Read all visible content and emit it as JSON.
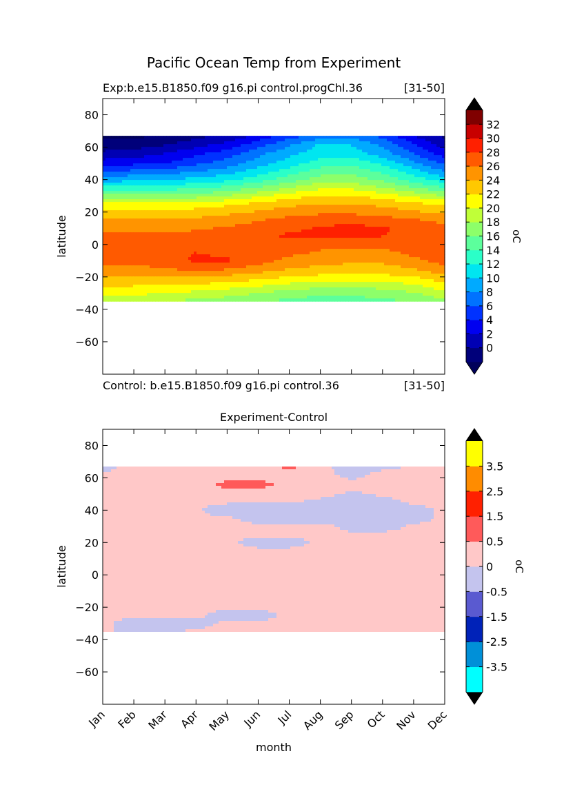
{
  "figure_title": "Pacific Ocean Temp from Experiment",
  "chart_data": [
    {
      "type": "heatmap",
      "subtitle_left": "Exp:b.e15.B1850.f09 g16.pi control.progChl.36",
      "subtitle_right": "[31-50]",
      "footer_left": "Control: b.e15.B1850.f09 g16.pi control.36",
      "footer_right": "[31-50]",
      "xlabel": "",
      "ylabel": "latitude",
      "xlim": [
        0,
        11
      ],
      "ylim": [
        -80,
        90
      ],
      "y_ticks": [
        80,
        60,
        40,
        20,
        0,
        -20,
        -40,
        -60
      ],
      "data_lat_range": [
        -35,
        67
      ],
      "colorbar": {
        "unit": "°C",
        "unit_label": "oC",
        "levels": [
          -2,
          0,
          2,
          4,
          6,
          8,
          10,
          12,
          14,
          16,
          18,
          20,
          22,
          24,
          26,
          28,
          30,
          32,
          34
        ],
        "tick_labels": [
          "0",
          "2",
          "4",
          "6",
          "8",
          "10",
          "12",
          "14",
          "16",
          "18",
          "20",
          "22",
          "24",
          "26",
          "28",
          "30",
          "32"
        ],
        "colors": [
          "#00007a",
          "#0000b4",
          "#0000f0",
          "#0032ff",
          "#0072ff",
          "#00aaff",
          "#00e6f0",
          "#2bffc8",
          "#5cff9c",
          "#8dff6a",
          "#c0ff38",
          "#ffff00",
          "#ffc800",
          "#ff9400",
          "#ff5a00",
          "#ff2000",
          "#c80000",
          "#800000"
        ],
        "under_color": "#00005a",
        "over_color": "#000000"
      },
      "grid": {
        "lats": [
          67,
          62,
          56,
          50,
          45,
          40,
          35,
          30,
          25,
          20,
          15,
          10,
          5,
          0,
          -5,
          -10,
          -15,
          -20,
          -25,
          -30,
          -35
        ],
        "values": [
          [
            -2.5,
            -2.4,
            -1.8,
            -0.5,
            0.2,
            2.5,
            5.0,
            6.5,
            7.0,
            5.5,
            2.0,
            -0.5
          ],
          [
            -1.5,
            -1.2,
            -0.3,
            1.0,
            2.5,
            5.0,
            7.5,
            10.2,
            9.8,
            7.5,
            4.0,
            1.0
          ],
          [
            0.5,
            1.0,
            2.0,
            3.5,
            5.0,
            7.5,
            9.5,
            11.0,
            11.0,
            9.0,
            6.0,
            3.0
          ],
          [
            3.0,
            3.5,
            4.0,
            5.5,
            7.0,
            9.0,
            11.0,
            13.0,
            13.5,
            11.5,
            8.5,
            5.5
          ],
          [
            6.0,
            6.5,
            7.0,
            8.0,
            9.0,
            11.0,
            13.0,
            15.0,
            15.5,
            13.5,
            11.0,
            8.0
          ],
          [
            9.0,
            9.5,
            10.0,
            10.5,
            11.5,
            13.0,
            15.0,
            17.0,
            17.0,
            15.5,
            13.0,
            11.0
          ],
          [
            12.5,
            12.8,
            13.0,
            13.5,
            14.5,
            16.0,
            18.0,
            19.5,
            19.5,
            18.0,
            16.0,
            14.0
          ],
          [
            16.5,
            16.5,
            16.5,
            17.0,
            18.0,
            19.5,
            21.0,
            22.0,
            22.0,
            21.0,
            19.5,
            18.0
          ],
          [
            20.5,
            20.5,
            20.5,
            20.8,
            21.5,
            22.5,
            23.5,
            24.0,
            24.0,
            23.5,
            22.5,
            21.5
          ],
          [
            22.5,
            22.5,
            22.5,
            22.8,
            23.5,
            24.2,
            25.0,
            25.5,
            25.5,
            25.0,
            24.2,
            23.5
          ],
          [
            24.5,
            24.5,
            24.2,
            24.5,
            25.0,
            25.8,
            26.8,
            27.3,
            27.5,
            27.0,
            26.2,
            25.5
          ],
          [
            25.5,
            25.5,
            25.5,
            25.8,
            26.2,
            27.0,
            27.5,
            28.2,
            28.5,
            28.2,
            27.5,
            26.5
          ],
          [
            26.5,
            26.5,
            26.5,
            26.5,
            26.5,
            27.0,
            28.5,
            28.4,
            28.5,
            28.0,
            27.5,
            27.0
          ],
          [
            27.0,
            27.0,
            27.0,
            27.0,
            27.0,
            27.0,
            27.0,
            26.5,
            26.5,
            26.5,
            26.8,
            27.5
          ],
          [
            27.0,
            27.0,
            27.5,
            28.0,
            27.5,
            27.0,
            26.5,
            25.8,
            25.6,
            25.5,
            26.5,
            27.5
          ],
          [
            26.5,
            26.5,
            27.0,
            28.4,
            28.3,
            26.8,
            25.5,
            24.8,
            24.5,
            24.5,
            25.5,
            26.8
          ],
          [
            25.5,
            25.5,
            26.0,
            26.5,
            26.2,
            25.2,
            24.0,
            23.5,
            23.0,
            23.2,
            24.0,
            25.5
          ],
          [
            24.0,
            24.0,
            24.2,
            24.0,
            23.5,
            22.8,
            22.0,
            21.5,
            21.0,
            21.5,
            22.0,
            23.5
          ],
          [
            22.5,
            22.2,
            22.0,
            21.8,
            21.2,
            20.5,
            19.5,
            19.0,
            18.8,
            19.0,
            19.8,
            21.5
          ],
          [
            21.0,
            20.5,
            20.0,
            19.5,
            18.8,
            18.0,
            17.0,
            16.5,
            16.5,
            17.0,
            17.8,
            19.5
          ],
          [
            19.0,
            18.5,
            18.0,
            17.5,
            17.0,
            16.2,
            15.5,
            15.0,
            15.0,
            15.5,
            16.0,
            17.5
          ]
        ]
      }
    },
    {
      "type": "heatmap",
      "title": "Experiment-Control",
      "xlabel": "month",
      "ylabel": "latitude",
      "xlim": [
        0,
        11
      ],
      "ylim": [
        -80,
        90
      ],
      "y_ticks": [
        80,
        60,
        40,
        20,
        0,
        -20,
        -40,
        -60
      ],
      "x_ticks": [
        "Jan",
        "Feb",
        "Mar",
        "Apr",
        "May",
        "Jun",
        "Jul",
        "Aug",
        "Sep",
        "Oct",
        "Nov",
        "Dec"
      ],
      "data_lat_range": [
        -35,
        67
      ],
      "colorbar": {
        "unit": "°C",
        "unit_label": "oC",
        "levels": [
          -5,
          -3.5,
          -2.5,
          -1.5,
          -0.5,
          0,
          0.5,
          1.5,
          2.5,
          3.5,
          5
        ],
        "tick_labels": [
          "-3.5",
          "-2.5",
          "-1.5",
          "-0.5",
          "0",
          "0.5",
          "1.5",
          "2.5",
          "3.5"
        ],
        "colors": [
          "#00ffff",
          "#0090d8",
          "#0022b8",
          "#5a5ad0",
          "#c4c4ee",
          "#ffc8c8",
          "#ff5a5a",
          "#ff2000",
          "#ff8c00",
          "#ffff00"
        ],
        "under_color": "#000000",
        "over_color": "#000000"
      },
      "grid": {
        "lats": [
          67,
          62,
          56,
          50,
          45,
          40,
          35,
          30,
          25,
          20,
          15,
          10,
          5,
          0,
          -5,
          -10,
          -15,
          -20,
          -25,
          -30,
          -35
        ],
        "values": [
          [
            -0.1,
            0.1,
            0.1,
            0.05,
            0.1,
            0.2,
            0.7,
            0.05,
            -0.1,
            -0.1,
            0.05,
            0.05
          ],
          [
            0.05,
            0.05,
            0.05,
            0.1,
            0.2,
            0.2,
            0.2,
            0.1,
            -0.1,
            0.1,
            0.05,
            0.05
          ],
          [
            0.05,
            0.05,
            0.05,
            0.1,
            0.7,
            0.7,
            0.3,
            0.1,
            0.1,
            0.05,
            0.05,
            0.05
          ],
          [
            0.05,
            0.05,
            0.05,
            0.1,
            0.3,
            0.3,
            0.2,
            0.1,
            -0.05,
            0.05,
            0.05,
            0.05
          ],
          [
            0.05,
            0.05,
            0.05,
            0.05,
            0.05,
            0.05,
            0.05,
            -0.1,
            -0.2,
            -0.1,
            0.05,
            0.05
          ],
          [
            0.05,
            0.05,
            0.05,
            0.05,
            -0.2,
            -0.2,
            -0.2,
            -0.2,
            -0.2,
            -0.2,
            -0.1,
            0.05
          ],
          [
            0.05,
            0.05,
            0.05,
            0.05,
            0.05,
            -0.1,
            -0.1,
            -0.2,
            -0.2,
            -0.2,
            -0.1,
            0.05
          ],
          [
            0.05,
            0.05,
            0.05,
            0.05,
            0.05,
            0.05,
            0.05,
            0.1,
            -0.1,
            -0.1,
            0.05,
            0.05
          ],
          [
            0.05,
            0.05,
            0.05,
            0.05,
            0.05,
            0.05,
            0.05,
            0.05,
            0.05,
            0.05,
            0.05,
            0.05
          ],
          [
            0.05,
            0.05,
            0.05,
            0.05,
            0.05,
            -0.1,
            -0.1,
            0.05,
            0.05,
            0.05,
            0.05,
            0.05
          ],
          [
            0.05,
            0.05,
            0.05,
            0.05,
            0.05,
            0.05,
            0.05,
            0.05,
            0.05,
            0.05,
            0.05,
            0.05
          ],
          [
            0.05,
            0.05,
            0.05,
            0.05,
            0.05,
            0.05,
            0.05,
            0.05,
            0.05,
            0.05,
            0.05,
            0.05
          ],
          [
            0.05,
            0.05,
            0.05,
            0.05,
            0.05,
            0.05,
            0.05,
            0.05,
            0.05,
            0.05,
            0.05,
            0.05
          ],
          [
            0.05,
            0.05,
            0.05,
            0.05,
            0.05,
            0.05,
            0.05,
            0.05,
            0.05,
            0.05,
            0.05,
            0.05
          ],
          [
            0.05,
            0.05,
            0.05,
            0.05,
            0.05,
            0.05,
            0.05,
            0.05,
            0.05,
            0.05,
            0.05,
            0.05
          ],
          [
            0.05,
            0.05,
            0.05,
            0.05,
            0.05,
            0.05,
            0.05,
            0.05,
            0.05,
            0.05,
            0.05,
            0.05
          ],
          [
            0.05,
            0.05,
            0.05,
            0.05,
            0.05,
            0.05,
            0.05,
            0.05,
            0.05,
            0.05,
            0.05,
            0.05
          ],
          [
            0.05,
            0.05,
            0.05,
            0.05,
            0.05,
            0.05,
            0.05,
            0.05,
            0.05,
            0.05,
            0.05,
            0.05
          ],
          [
            0.05,
            0.05,
            0.05,
            0.05,
            -0.1,
            -0.1,
            0.05,
            0.05,
            0.05,
            0.05,
            0.05,
            0.05
          ],
          [
            0.05,
            -0.1,
            -0.1,
            -0.1,
            0.05,
            0.05,
            0.05,
            0.05,
            0.05,
            0.05,
            0.05,
            0.05
          ],
          [
            0.05,
            -0.1,
            -0.05,
            0.05,
            0.05,
            0.05,
            0.05,
            0.05,
            0.05,
            0.05,
            0.05,
            0.05
          ]
        ]
      }
    }
  ]
}
